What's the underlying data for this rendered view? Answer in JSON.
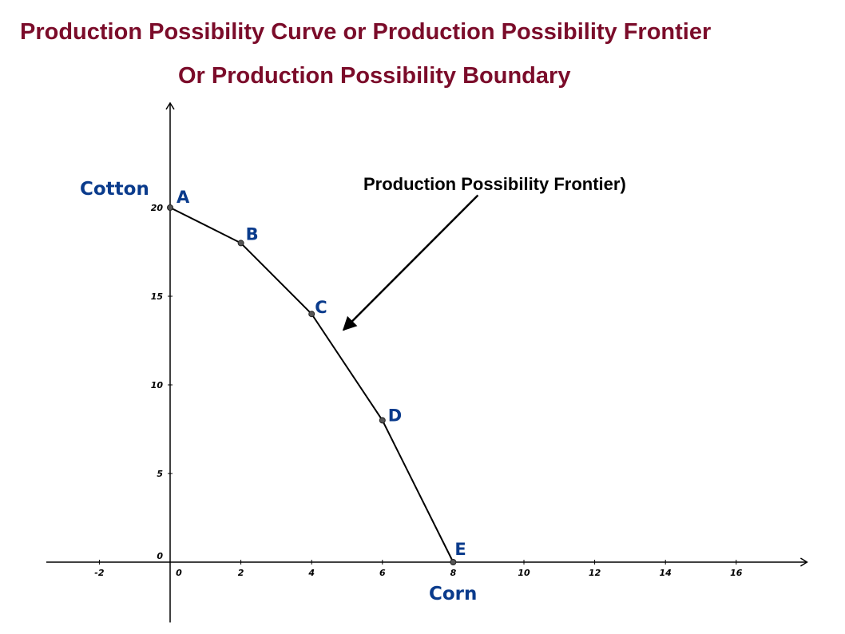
{
  "chart_data": {
    "type": "line",
    "title": "Production Possibility Curve or Production Possibility Frontier",
    "subtitle": "Or Production Possibility Boundary",
    "xlabel": "Corn",
    "ylabel": "Cotton",
    "xlim": [
      -3.5,
      18
    ],
    "ylim": [
      -3.4,
      25.9
    ],
    "x_ticks": [
      -2,
      0,
      2,
      4,
      6,
      8,
      10,
      12,
      14,
      16
    ],
    "x_tick_labels": [
      "-2",
      "0",
      "2",
      "4",
      "6",
      "8",
      "10",
      "12",
      "14",
      "16"
    ],
    "y_ticks": [
      0,
      5,
      10,
      15,
      20
    ],
    "y_tick_labels": [
      "0",
      "5",
      "10",
      "15",
      "20"
    ],
    "grid": false,
    "points": [
      {
        "label": "A",
        "x": 0,
        "y": 20
      },
      {
        "label": "B",
        "x": 2,
        "y": 18
      },
      {
        "label": "C",
        "x": 4,
        "y": 14
      },
      {
        "label": "D",
        "x": 6,
        "y": 8
      },
      {
        "label": "E",
        "x": 8,
        "y": 0
      }
    ],
    "annotation": {
      "text": "Production Possibility Frontier)",
      "arrow_from": [
        8.7,
        20.7
      ],
      "arrow_to": [
        4.9,
        13.1
      ]
    }
  },
  "colors": {
    "title": "#7b0c2a",
    "labels": "#0a3b8c",
    "line": "#000000",
    "point": "#555555"
  }
}
